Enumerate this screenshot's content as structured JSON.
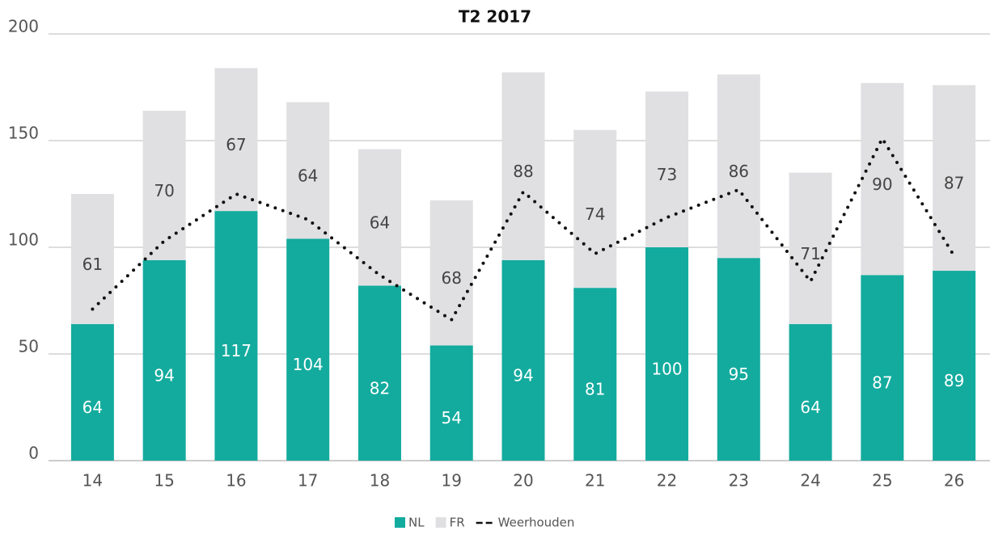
{
  "chart_data": {
    "type": "bar",
    "title": "T2 2017",
    "categories": [
      "14",
      "15",
      "16",
      "17",
      "18",
      "19",
      "20",
      "21",
      "22",
      "23",
      "24",
      "25",
      "26"
    ],
    "stacked": true,
    "series": [
      {
        "name": "NL",
        "type": "bar",
        "color": "#13ab9e",
        "values": [
          64,
          94,
          117,
          104,
          82,
          54,
          94,
          81,
          100,
          95,
          64,
          87,
          89
        ]
      },
      {
        "name": "FR",
        "type": "bar",
        "color": "#e0e0e2",
        "values": [
          61,
          70,
          67,
          64,
          64,
          68,
          88,
          74,
          73,
          86,
          71,
          90,
          87
        ]
      },
      {
        "name": "Weerhouden",
        "type": "line",
        "color": "#111111",
        "values": [
          71,
          103,
          125,
          113,
          87,
          66,
          126,
          97,
          114,
          127,
          84,
          151,
          96
        ]
      }
    ],
    "ylim": [
      0,
      200
    ],
    "yticks": [
      0,
      50,
      100,
      150,
      200
    ],
    "grid": true,
    "legend": "bottom"
  }
}
